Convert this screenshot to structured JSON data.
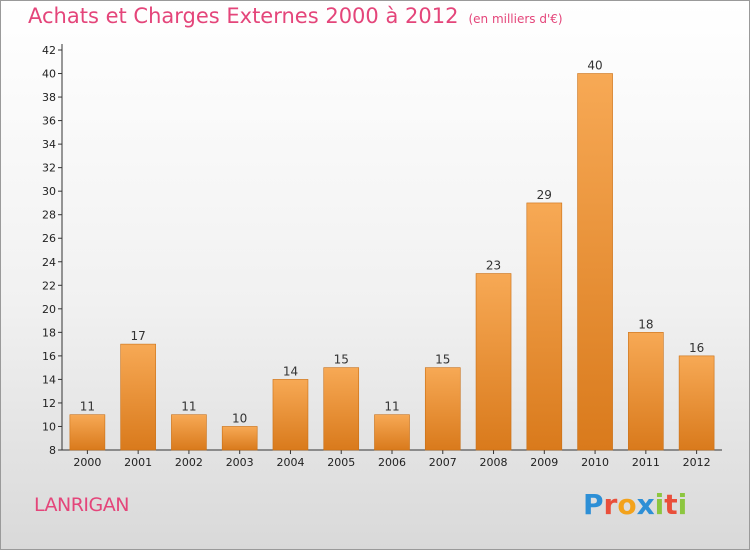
{
  "chart_data": {
    "type": "bar",
    "title": "Achats et Charges Externes 2000 à 2012",
    "unit": "(en milliers d'€)",
    "categories": [
      "2000",
      "2001",
      "2002",
      "2003",
      "2004",
      "2005",
      "2006",
      "2007",
      "2008",
      "2009",
      "2010",
      "2011",
      "2012"
    ],
    "values": [
      11,
      17,
      11,
      10,
      14,
      15,
      11,
      15,
      23,
      29,
      40,
      18,
      16
    ],
    "ylim": [
      8,
      42
    ],
    "yticks": [
      8,
      10,
      12,
      14,
      16,
      18,
      20,
      22,
      24,
      26,
      28,
      30,
      32,
      34,
      36,
      38,
      40,
      42
    ],
    "grid": false,
    "bar_color_top": "#f7a955",
    "bar_color_bottom": "#d97a1c"
  },
  "footer": {
    "commune": "LANRIGAN",
    "logo_letters": [
      "P",
      "r",
      "o",
      "x",
      "i",
      "t",
      "i"
    ]
  }
}
